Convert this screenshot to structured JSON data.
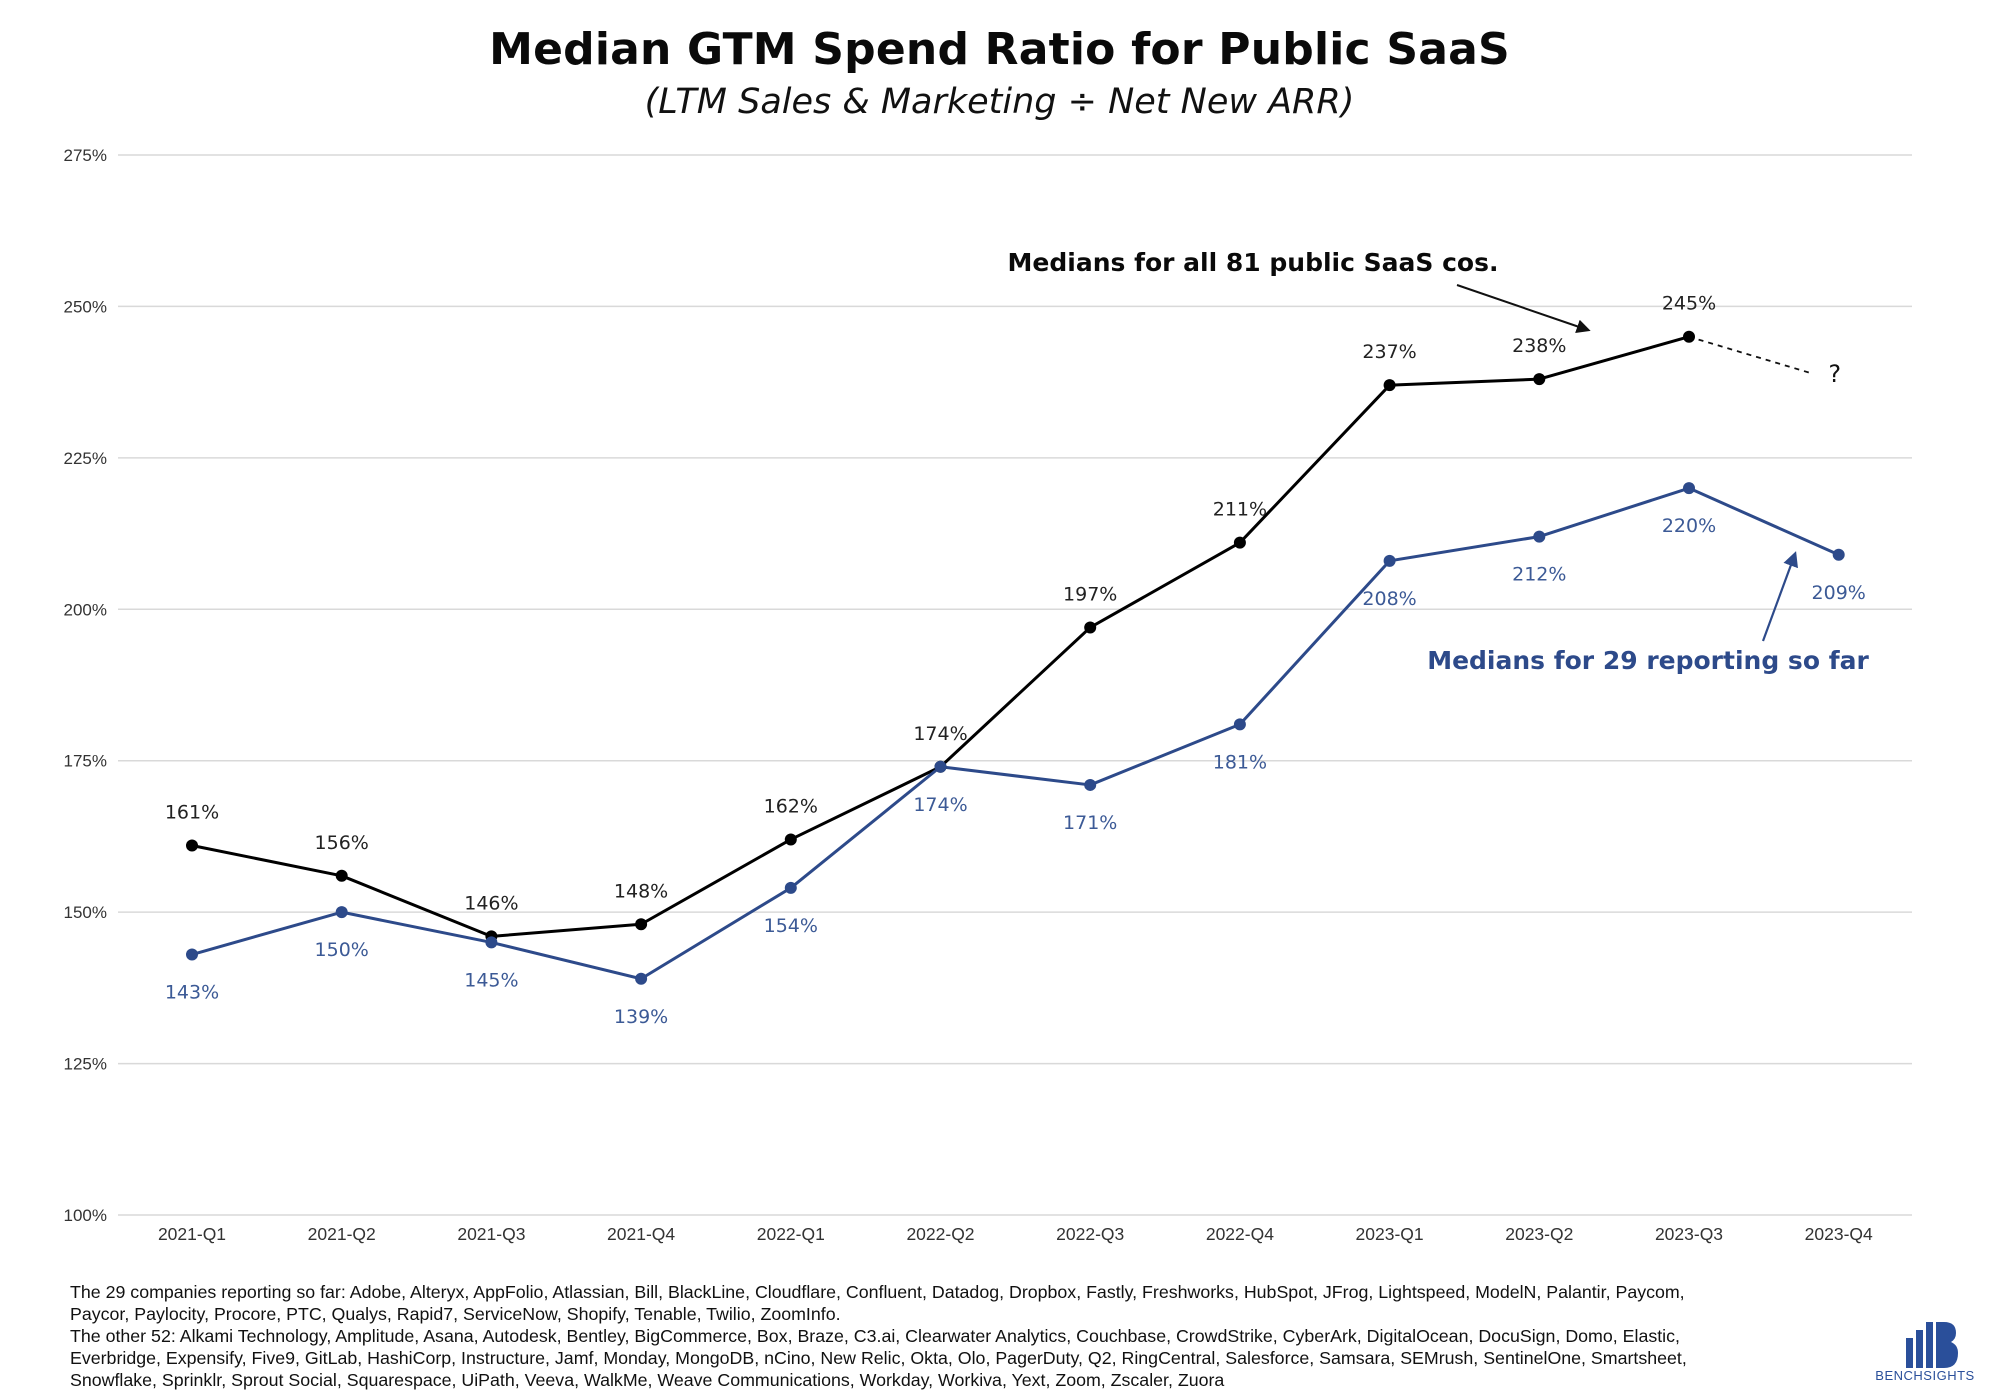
{
  "chart_data": {
    "type": "line",
    "title": "Median GTM Spend Ratio for Public SaaS",
    "subtitle": "(LTM Sales & Marketing ÷ Net New ARR)",
    "categories": [
      "2021-Q1",
      "2021-Q2",
      "2021-Q3",
      "2021-Q4",
      "2022-Q1",
      "2022-Q2",
      "2022-Q3",
      "2022-Q4",
      "2023-Q1",
      "2023-Q2",
      "2023-Q3",
      "2023-Q4"
    ],
    "ylim": [
      100,
      275
    ],
    "yticks": [
      100,
      125,
      150,
      175,
      200,
      225,
      250,
      275
    ],
    "ytick_labels": [
      "100%",
      "125%",
      "150%",
      "175%",
      "200%",
      "225%",
      "250%",
      "275%"
    ],
    "grid": true,
    "series": [
      {
        "name": "Medians for all 81 public SaaS cos.",
        "color": "#000000",
        "values": [
          161,
          156,
          146,
          148,
          162,
          174,
          197,
          211,
          237,
          238,
          245,
          null
        ],
        "labels": [
          "161%",
          "156%",
          "146%",
          "148%",
          "162%",
          "174%",
          "197%",
          "211%",
          "237%",
          "238%",
          "245%",
          ""
        ],
        "projection": {
          "from_index": 10,
          "to_index": 11,
          "value": 239,
          "label": "?"
        }
      },
      {
        "name": "Medians for 29 reporting so far",
        "color": "#2d4a8a",
        "values": [
          143,
          150,
          145,
          139,
          154,
          174,
          171,
          181,
          208,
          212,
          220,
          209
        ],
        "labels": [
          "143%",
          "150%",
          "145%",
          "139%",
          "154%",
          "174%",
          "171%",
          "181%",
          "208%",
          "212%",
          "220%",
          "209%"
        ]
      }
    ]
  },
  "footnote": {
    "lines": [
      "The 29 companies reporting so far: Adobe, Alteryx, AppFolio, Atlassian, Bill, BlackLine, Cloudflare, Confluent, Datadog, Dropbox, Fastly, Freshworks, HubSpot, JFrog, Lightspeed, ModelN, Palantir, Paycom,",
      "Paycor, Paylocity, Procore, PTC, Qualys, Rapid7, ServiceNow, Shopify, Tenable, Twilio, ZoomInfo.",
      "The other 52: Alkami Technology, Amplitude, Asana, Autodesk, Bentley, BigCommerce, Box, Braze, C3.ai, Clearwater Analytics, Couchbase, CrowdStrike, CyberArk, DigitalOcean, DocuSign, Domo, Elastic,",
      "Everbridge, Expensify, Five9, GitLab, HashiCorp, Instructure, Jamf, Monday, MongoDB, nCino, New Relic, Okta, Olo, PagerDuty, Q2, RingCentral, Salesforce, Samsara, SEMrush, SentinelOne, Smartsheet,",
      "Snowflake, Sprinklr, Sprout Social, Squarespace, UiPath, Veeva, WalkMe, Weave Communications, Workday, Workiva, Yext, Zoom, Zscaler, Zuora"
    ]
  },
  "logo": {
    "text": "BENCHSIGHTS",
    "color": "#2a4f9a"
  }
}
